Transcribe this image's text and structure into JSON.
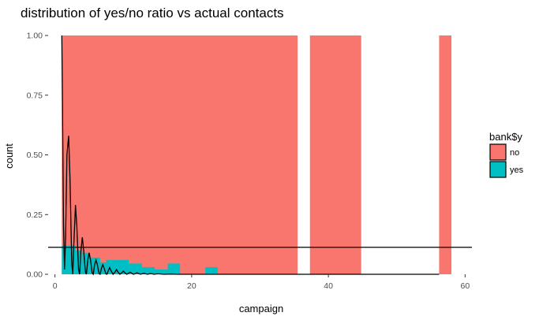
{
  "chart_data": {
    "type": "bar",
    "title": "distribution of yes/no ratio vs actual contacts",
    "xlabel": "campaign",
    "ylabel": "count",
    "xlim": [
      -1,
      61
    ],
    "ylim": [
      0,
      1
    ],
    "x_ticks": [
      0,
      20,
      40,
      60
    ],
    "y_ticks": [
      0.0,
      0.25,
      0.5,
      0.75,
      1.0
    ],
    "x_tick_labels": [
      "0",
      "20",
      "40",
      "60"
    ],
    "y_tick_labels": [
      "0.00",
      "0.25",
      "0.50",
      "0.75",
      "1.00"
    ],
    "grid": false,
    "legend": {
      "title": "bank$y",
      "position": "right"
    },
    "series": [
      {
        "name": "no",
        "color": "#F8766D",
        "bars": [
          {
            "x0": 1,
            "x1": 35.5,
            "y": 1.0
          },
          {
            "x0": 37.3,
            "x1": 44.8,
            "y": 1.0
          },
          {
            "x0": 56.2,
            "x1": 58,
            "y": 1.0
          }
        ]
      },
      {
        "name": "yes",
        "color": "#00BFC4",
        "bars": [
          {
            "x0": 1,
            "x1": 3,
            "y": 0.12
          },
          {
            "x0": 3,
            "x1": 4,
            "y": 0.1
          },
          {
            "x0": 4,
            "x1": 5,
            "y": 0.09
          },
          {
            "x0": 5,
            "x1": 6.6,
            "y": 0.07
          },
          {
            "x0": 6.6,
            "x1": 7.5,
            "y": 0.05
          },
          {
            "x0": 7.5,
            "x1": 10.8,
            "y": 0.06
          },
          {
            "x0": 10.8,
            "x1": 12.7,
            "y": 0.045
          },
          {
            "x0": 12.7,
            "x1": 14.6,
            "y": 0.03
          },
          {
            "x0": 14.6,
            "x1": 16.5,
            "y": 0.02
          },
          {
            "x0": 16.5,
            "x1": 18.3,
            "y": 0.045
          },
          {
            "x0": 22,
            "x1": 23.8,
            "y": 0.03
          }
        ]
      }
    ],
    "density_curve": {
      "color": "#000000",
      "points": [
        [
          1.0,
          1.0
        ],
        [
          1.1,
          0.7
        ],
        [
          1.25,
          0.2
        ],
        [
          1.4,
          0.02
        ],
        [
          1.55,
          0.15
        ],
        [
          1.75,
          0.5
        ],
        [
          2.0,
          0.58
        ],
        [
          2.2,
          0.4
        ],
        [
          2.45,
          0.05
        ],
        [
          2.6,
          0.0
        ],
        [
          2.75,
          0.12
        ],
        [
          3.0,
          0.29
        ],
        [
          3.2,
          0.2
        ],
        [
          3.45,
          0.02
        ],
        [
          3.6,
          0.0
        ],
        [
          3.8,
          0.1
        ],
        [
          4.0,
          0.155
        ],
        [
          4.2,
          0.1
        ],
        [
          4.45,
          0.01
        ],
        [
          4.6,
          0.0
        ],
        [
          4.8,
          0.06
        ],
        [
          5.0,
          0.09
        ],
        [
          5.2,
          0.06
        ],
        [
          5.45,
          0.005
        ],
        [
          5.6,
          0.0
        ],
        [
          5.8,
          0.04
        ],
        [
          6.0,
          0.06
        ],
        [
          6.2,
          0.04
        ],
        [
          6.45,
          0.003
        ],
        [
          6.6,
          0.0
        ],
        [
          6.8,
          0.025
        ],
        [
          7.0,
          0.04
        ],
        [
          7.2,
          0.025
        ],
        [
          7.45,
          0.002
        ],
        [
          7.6,
          0.0
        ],
        [
          7.8,
          0.015
        ],
        [
          8.0,
          0.028
        ],
        [
          8.2,
          0.015
        ],
        [
          8.5,
          0.0
        ],
        [
          8.8,
          0.01
        ],
        [
          9.0,
          0.02
        ],
        [
          9.2,
          0.01
        ],
        [
          9.5,
          0.0
        ],
        [
          9.8,
          0.007
        ],
        [
          10.0,
          0.013
        ],
        [
          10.2,
          0.007
        ],
        [
          10.5,
          0.0
        ],
        [
          10.8,
          0.005
        ],
        [
          11.0,
          0.009
        ],
        [
          11.2,
          0.005
        ],
        [
          11.5,
          0.0
        ],
        [
          12.0,
          0.006
        ],
        [
          12.5,
          0.0
        ],
        [
          13.0,
          0.004
        ],
        [
          13.5,
          0.0
        ],
        [
          14.0,
          0.003
        ],
        [
          14.5,
          0.0
        ],
        [
          15.0,
          0.002
        ],
        [
          16.0,
          0.0
        ],
        [
          17.0,
          0.001
        ],
        [
          18.0,
          0.0
        ],
        [
          56.2,
          0.0
        ]
      ]
    },
    "reference_line": {
      "y": 0.113,
      "color": "#000000"
    }
  }
}
